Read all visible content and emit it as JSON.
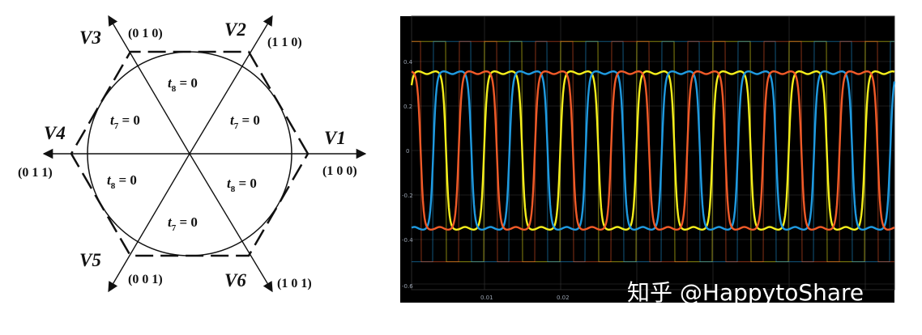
{
  "diagram": {
    "vectors": [
      {
        "name": "V1",
        "code": "(1 0 0)"
      },
      {
        "name": "V2",
        "code": "(1 1 0)"
      },
      {
        "name": "V3",
        "code": "(0 1 0)"
      },
      {
        "name": "V4",
        "code": "(0 1 1)"
      },
      {
        "name": "V5",
        "code": "(0 0 1)"
      },
      {
        "name": "V6",
        "code": "(1 0 1)"
      }
    ],
    "sectors": [
      {
        "var": "t",
        "sub": "8",
        "rest": " = 0"
      },
      {
        "var": "t",
        "sub": "7",
        "rest": " = 0"
      },
      {
        "var": "t",
        "sub": "7",
        "rest": " = 0"
      },
      {
        "var": "t",
        "sub": "8",
        "rest": " = 0"
      },
      {
        "var": "t",
        "sub": "8",
        "rest": " = 0"
      },
      {
        "var": "t",
        "sub": "7",
        "rest": " = 0"
      }
    ]
  },
  "scope": {
    "y_ticks": [
      "0.4",
      "0.2",
      "0",
      "-0.2",
      "-0.4",
      "-0.6"
    ],
    "x_ticks": [
      "0.01",
      "0.02"
    ],
    "colors": {
      "background": "#000000",
      "grid": "#3a3a3a",
      "phase_a": "#f4ee1c",
      "phase_b": "#1f9ae0",
      "phase_c": "#f05a28"
    }
  },
  "watermark": "知乎 @HappytoShare"
}
